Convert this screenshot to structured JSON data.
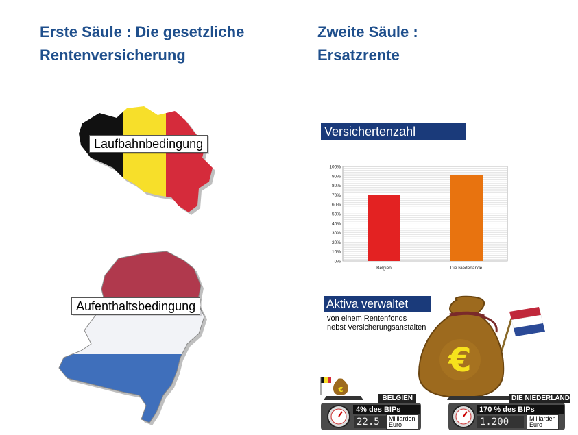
{
  "left_heading": {
    "line1": "Erste Säule : Die gesetzliche",
    "line2": "Rentenversicherung"
  },
  "right_heading": {
    "line1": "Zweite Säule :",
    "line2": "Ersatzrente"
  },
  "belgium_label": "Laufbahnbedingung",
  "netherlands_label": "Aufenthaltsbedingung",
  "chart_banner": "Versichertenzahl",
  "chart_data": {
    "type": "bar",
    "categories": [
      "Belgien",
      "Die Niederlande"
    ],
    "values": [
      70,
      91
    ],
    "colors": [
      "#e32222",
      "#e8730f"
    ],
    "yticks": [
      "0%",
      "10%",
      "20%",
      "30%",
      "40%",
      "50%",
      "60%",
      "70%",
      "80%",
      "90%",
      "100%"
    ],
    "ylim": [
      0,
      100
    ],
    "grid": true
  },
  "assets": {
    "banner": "Aktiva verwaltet",
    "sub1": "von einem Rentenfonds",
    "sub2": "nebst Versicherungsanstalten",
    "belgium": {
      "country": "BELGIEN",
      "percent": "4% des BIPs",
      "value": "22.5",
      "unit1": "Milliarden",
      "unit2": "Euro"
    },
    "netherlands": {
      "country": "DIE NIEDERLANDE",
      "percent": "170 % des BIPs",
      "value": "1.200",
      "unit1": "Milliarden",
      "unit2": "Euro"
    },
    "currency_symbol": "€"
  },
  "colors": {
    "heading": "#1f4f8c",
    "banner": "#1a3a7a"
  }
}
